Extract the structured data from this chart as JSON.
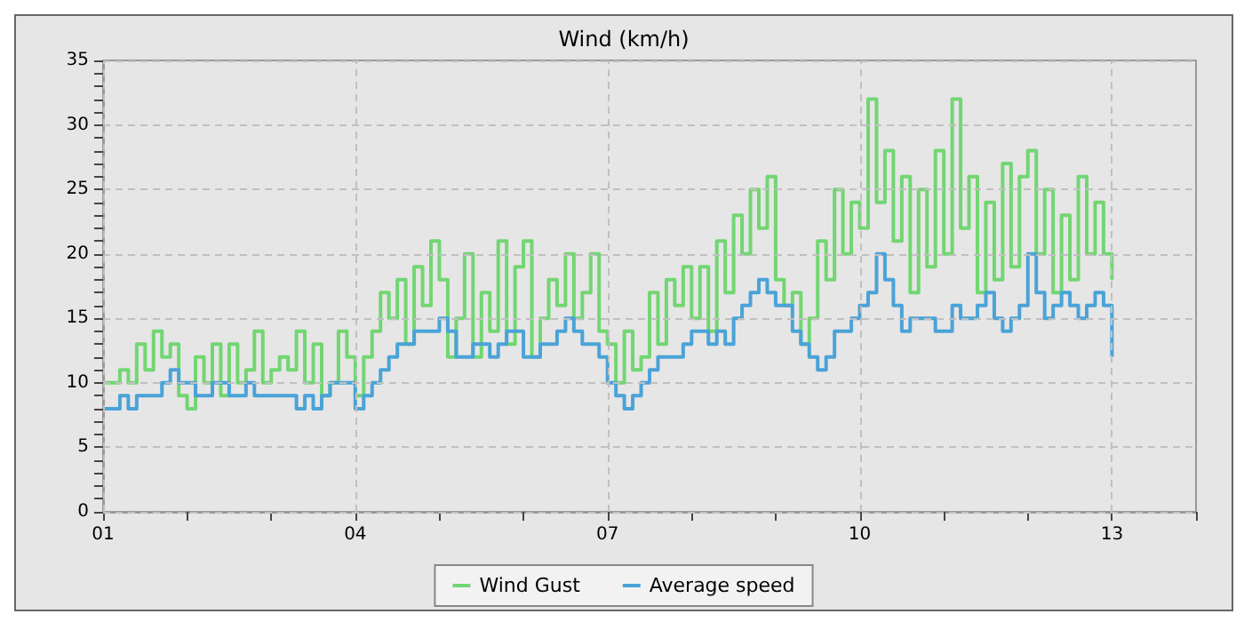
{
  "chart_data": {
    "type": "step",
    "title": "Wind (km/h)",
    "x": [
      1,
      1.1,
      1.2,
      1.3,
      1.4,
      1.5,
      1.6,
      1.7,
      1.8,
      1.9,
      2,
      2.1,
      2.2,
      2.3,
      2.4,
      2.5,
      2.6,
      2.7,
      2.8,
      2.9,
      3,
      3.1,
      3.2,
      3.3,
      3.4,
      3.5,
      3.6,
      3.7,
      3.8,
      3.9,
      4,
      4.1,
      4.2,
      4.3,
      4.4,
      4.5,
      4.6,
      4.7,
      4.8,
      4.9,
      5,
      5.1,
      5.2,
      5.3,
      5.4,
      5.5,
      5.6,
      5.7,
      5.8,
      5.9,
      6,
      6.1,
      6.2,
      6.3,
      6.4,
      6.5,
      6.6,
      6.7,
      6.8,
      6.9,
      7,
      7.1,
      7.2,
      7.3,
      7.4,
      7.5,
      7.6,
      7.7,
      7.8,
      7.9,
      8,
      8.1,
      8.2,
      8.3,
      8.4,
      8.5,
      8.6,
      8.7,
      8.8,
      8.9,
      9,
      9.1,
      9.2,
      9.3,
      9.4,
      9.5,
      9.6,
      9.7,
      9.8,
      9.9,
      10,
      10.1,
      10.2,
      10.3,
      10.4,
      10.5,
      10.6,
      10.7,
      10.8,
      10.9,
      11,
      11.1,
      11.2,
      11.3,
      11.4,
      11.5,
      11.6,
      11.7,
      11.8,
      11.9,
      12,
      12.1,
      12.2,
      12.3,
      12.4,
      12.5,
      12.6,
      12.7,
      12.8,
      12.9,
      13
    ],
    "series": [
      {
        "name": "Wind Gust",
        "color": "#72d672",
        "values": [
          10,
          10,
          11,
          10,
          13,
          11,
          14,
          12,
          13,
          9,
          8,
          12,
          10,
          13,
          9,
          13,
          10,
          11,
          14,
          10,
          11,
          12,
          11,
          14,
          10,
          13,
          9,
          10,
          14,
          12,
          9,
          12,
          14,
          17,
          15,
          18,
          13,
          19,
          16,
          21,
          18,
          12,
          15,
          20,
          12,
          17,
          14,
          21,
          13,
          19,
          21,
          12,
          15,
          18,
          16,
          20,
          15,
          17,
          20,
          14,
          13,
          10,
          14,
          11,
          12,
          17,
          13,
          18,
          16,
          19,
          15,
          19,
          14,
          21,
          17,
          23,
          20,
          25,
          22,
          26,
          18,
          16,
          17,
          13,
          15,
          21,
          18,
          25,
          20,
          24,
          22,
          32,
          24,
          28,
          21,
          26,
          17,
          25,
          19,
          28,
          20,
          32,
          22,
          26,
          17,
          24,
          18,
          27,
          19,
          26,
          28,
          20,
          25,
          17,
          23,
          18,
          26,
          20,
          24,
          20,
          18
        ]
      },
      {
        "name": "Average speed",
        "color": "#4aa3d8",
        "values": [
          8,
          8,
          9,
          8,
          9,
          9,
          9,
          10,
          11,
          10,
          10,
          9,
          9,
          10,
          10,
          9,
          9,
          10,
          9,
          9,
          9,
          9,
          9,
          8,
          9,
          8,
          9,
          10,
          10,
          10,
          8,
          9,
          10,
          11,
          12,
          13,
          13,
          14,
          14,
          14,
          15,
          14,
          12,
          12,
          13,
          13,
          12,
          13,
          14,
          14,
          12,
          12,
          13,
          13,
          14,
          15,
          14,
          13,
          13,
          12,
          10,
          9,
          8,
          9,
          10,
          11,
          12,
          12,
          12,
          13,
          14,
          14,
          13,
          14,
          13,
          15,
          16,
          17,
          18,
          17,
          16,
          16,
          14,
          13,
          12,
          11,
          12,
          14,
          14,
          15,
          16,
          17,
          20,
          18,
          16,
          14,
          15,
          15,
          15,
          14,
          14,
          16,
          15,
          15,
          16,
          17,
          15,
          14,
          15,
          16,
          20,
          17,
          15,
          16,
          17,
          16,
          15,
          16,
          17,
          16,
          12
        ]
      }
    ],
    "xlim": [
      1,
      14
    ],
    "xticks": [
      {
        "value": 1,
        "label": "01"
      },
      {
        "value": 2,
        "label": null
      },
      {
        "value": 3,
        "label": null
      },
      {
        "value": 4,
        "label": "04"
      },
      {
        "value": 5,
        "label": null
      },
      {
        "value": 6,
        "label": null
      },
      {
        "value": 7,
        "label": "07"
      },
      {
        "value": 8,
        "label": null
      },
      {
        "value": 9,
        "label": null
      },
      {
        "value": 10,
        "label": "10"
      },
      {
        "value": 11,
        "label": null
      },
      {
        "value": 12,
        "label": null
      },
      {
        "value": 13,
        "label": "13"
      },
      {
        "value": 14,
        "label": null
      }
    ],
    "ylim": [
      0,
      35
    ],
    "yticks": [
      0,
      {
        "value": 1,
        "label": null
      },
      {
        "value": 2,
        "label": null
      },
      {
        "value": 3,
        "label": null
      },
      {
        "value": 4,
        "label": null
      },
      5,
      {
        "value": 6,
        "label": null
      },
      {
        "value": 7,
        "label": null
      },
      {
        "value": 8,
        "label": null
      },
      {
        "value": 9,
        "label": null
      },
      10,
      {
        "value": 11,
        "label": null
      },
      {
        "value": 12,
        "label": null
      },
      {
        "value": 13,
        "label": null
      },
      {
        "value": 14,
        "label": null
      },
      15,
      {
        "value": 16,
        "label": null
      },
      {
        "value": 17,
        "label": null
      },
      {
        "value": 18,
        "label": null
      },
      {
        "value": 19,
        "label": null
      },
      20,
      {
        "value": 21,
        "label": null
      },
      {
        "value": 22,
        "label": null
      },
      {
        "value": 23,
        "label": null
      },
      {
        "value": 24,
        "label": null
      },
      25,
      {
        "value": 26,
        "label": null
      },
      {
        "value": 27,
        "label": null
      },
      {
        "value": 28,
        "label": null
      },
      {
        "value": 29,
        "label": null
      },
      30,
      {
        "value": 31,
        "label": null
      },
      {
        "value": 32,
        "label": null
      },
      {
        "value": 33,
        "label": null
      },
      {
        "value": 34,
        "label": null
      },
      35
    ],
    "grid": true,
    "legend": "bottom",
    "marker": "none",
    "line_style": "solid"
  }
}
